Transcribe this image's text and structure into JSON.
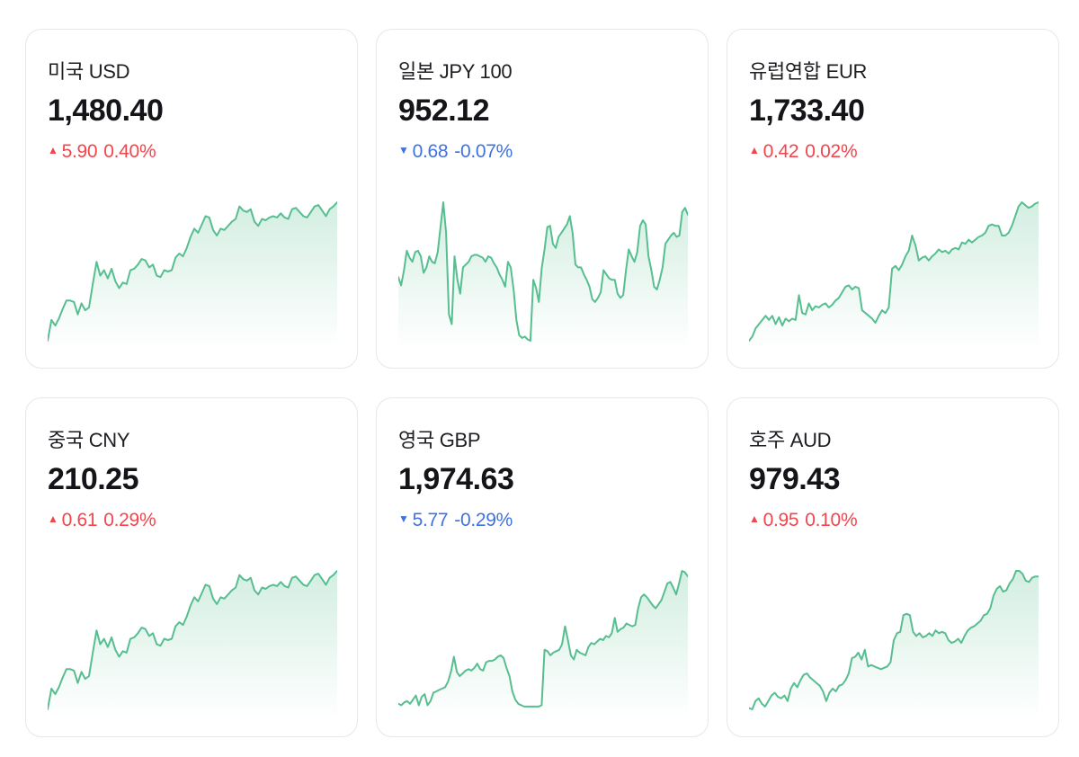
{
  "colors": {
    "up": "#f4444c",
    "down": "#3f72e0",
    "line": "#57be90",
    "card_border": "#e7e7ea",
    "title_text": "#1e1e23",
    "value_text": "#141419"
  },
  "cards": [
    {
      "title": "미국 USD",
      "value": "1,480.40",
      "direction": "up",
      "arrow": "▲",
      "change_amount": "5.90",
      "change_percent": "0.40%"
    },
    {
      "title": "일본 JPY 100",
      "value": "952.12",
      "direction": "down",
      "arrow": "▼",
      "change_amount": "0.68",
      "change_percent": "-0.07%"
    },
    {
      "title": "유럽연합 EUR",
      "value": "1,733.40",
      "direction": "up",
      "arrow": "▲",
      "change_amount": "0.42",
      "change_percent": "0.02%"
    },
    {
      "title": "중국 CNY",
      "value": "210.25",
      "direction": "up",
      "arrow": "▲",
      "change_amount": "0.61",
      "change_percent": "0.29%"
    },
    {
      "title": "영국 GBP",
      "value": "1,974.63",
      "direction": "down",
      "arrow": "▼",
      "change_amount": "5.77",
      "change_percent": "-0.29%"
    },
    {
      "title": "호주 AUD",
      "value": "979.43",
      "direction": "up",
      "arrow": "▲",
      "change_amount": "0.95",
      "change_percent": "0.10%"
    }
  ],
  "chart_data": [
    {
      "type": "line",
      "name": "미국 USD sparkline",
      "ylim": [
        0,
        100
      ],
      "grid": false,
      "legend": false,
      "values": [
        0,
        15,
        11,
        16,
        23,
        29,
        29,
        28,
        19,
        27,
        22,
        24,
        41,
        57,
        47,
        51,
        45,
        52,
        43,
        38,
        42,
        41,
        51,
        52,
        55,
        59,
        58,
        53,
        55,
        47,
        46,
        51,
        50,
        51,
        60,
        63,
        61,
        67,
        75,
        81,
        78,
        84,
        90,
        89,
        80,
        76,
        81,
        80,
        83,
        86,
        88,
        97,
        94,
        93,
        95,
        86,
        83,
        88,
        87,
        89,
        90,
        89,
        92,
        89,
        88,
        95,
        96,
        93,
        90,
        89,
        93,
        97,
        98,
        94,
        90,
        95,
        97,
        100
      ]
    },
    {
      "type": "line",
      "name": "일본 JPY 100 sparkline",
      "ylim": [
        0,
        100
      ],
      "grid": false,
      "legend": false,
      "values": [
        46,
        40,
        51,
        65,
        60,
        57,
        64,
        65,
        61,
        49,
        53,
        61,
        57,
        56,
        64,
        82,
        100,
        78,
        19,
        12,
        61,
        44,
        34,
        53,
        55,
        57,
        61,
        62,
        62,
        61,
        60,
        57,
        61,
        60,
        56,
        53,
        48,
        44,
        39,
        57,
        53,
        37,
        15,
        4,
        2,
        3,
        1,
        0,
        44,
        38,
        28,
        52,
        66,
        82,
        83,
        70,
        67,
        75,
        78,
        81,
        84,
        90,
        78,
        55,
        53,
        53,
        48,
        44,
        39,
        30,
        28,
        31,
        35,
        51,
        48,
        45,
        44,
        44,
        34,
        31,
        33,
        51,
        66,
        61,
        57,
        64,
        83,
        87,
        84,
        61,
        51,
        39,
        37,
        44,
        53,
        70,
        73,
        76,
        78,
        75,
        76,
        93,
        96,
        91
      ]
    },
    {
      "type": "line",
      "name": "유럽연합 EUR sparkline",
      "ylim": [
        0,
        100
      ],
      "grid": false,
      "legend": false,
      "values": [
        0,
        3,
        9,
        12,
        15,
        18,
        15,
        18,
        12,
        17,
        11,
        16,
        14,
        16,
        15,
        33,
        20,
        19,
        27,
        22,
        25,
        24,
        26,
        27,
        24,
        26,
        29,
        31,
        35,
        39,
        40,
        37,
        39,
        38,
        22,
        20,
        18,
        16,
        13,
        18,
        22,
        20,
        24,
        52,
        54,
        51,
        55,
        61,
        65,
        76,
        69,
        58,
        60,
        61,
        58,
        61,
        63,
        66,
        64,
        65,
        63,
        66,
        67,
        66,
        71,
        70,
        73,
        71,
        73,
        75,
        76,
        78,
        83,
        84,
        83,
        83,
        76,
        76,
        78,
        83,
        90,
        97,
        100,
        98,
        96,
        97,
        99,
        100
      ]
    },
    {
      "type": "line",
      "name": "중국 CNY sparkline",
      "ylim": [
        0,
        100
      ],
      "grid": false,
      "legend": false,
      "values": [
        0,
        15,
        11,
        16,
        23,
        29,
        29,
        28,
        19,
        27,
        22,
        24,
        41,
        57,
        47,
        51,
        45,
        52,
        43,
        38,
        42,
        41,
        51,
        52,
        55,
        59,
        58,
        53,
        55,
        47,
        46,
        51,
        50,
        51,
        60,
        63,
        61,
        67,
        75,
        81,
        78,
        84,
        90,
        89,
        80,
        76,
        81,
        80,
        83,
        86,
        88,
        97,
        94,
        93,
        95,
        86,
        83,
        88,
        87,
        89,
        90,
        89,
        92,
        89,
        88,
        95,
        96,
        93,
        90,
        89,
        93,
        97,
        98,
        94,
        90,
        95,
        97,
        100
      ]
    },
    {
      "type": "line",
      "name": "영국 GBP sparkline",
      "ylim": [
        0,
        100
      ],
      "grid": false,
      "legend": false,
      "values": [
        4,
        3,
        5,
        6,
        4,
        7,
        10,
        3,
        9,
        11,
        3,
        6,
        12,
        13,
        14,
        15,
        16,
        20,
        27,
        38,
        27,
        24,
        26,
        28,
        29,
        28,
        30,
        33,
        29,
        28,
        34,
        35,
        35,
        36,
        38,
        39,
        37,
        30,
        24,
        13,
        7,
        4,
        3,
        2,
        2,
        2,
        2,
        2,
        2,
        3,
        43,
        42,
        39,
        41,
        42,
        43,
        47,
        60,
        50,
        39,
        36,
        43,
        41,
        40,
        39,
        45,
        48,
        47,
        49,
        51,
        50,
        53,
        52,
        55,
        66,
        56,
        58,
        59,
        62,
        61,
        60,
        61,
        73,
        81,
        83,
        81,
        78,
        75,
        73,
        76,
        79,
        85,
        91,
        92,
        88,
        83,
        91,
        100,
        99,
        96
      ]
    },
    {
      "type": "line",
      "name": "호주 AUD sparkline",
      "ylim": [
        0,
        100
      ],
      "grid": false,
      "legend": false,
      "values": [
        1,
        0,
        6,
        8,
        4,
        2,
        6,
        10,
        12,
        9,
        8,
        10,
        6,
        15,
        19,
        16,
        21,
        25,
        26,
        23,
        21,
        19,
        17,
        13,
        6,
        12,
        15,
        13,
        17,
        18,
        21,
        26,
        37,
        38,
        41,
        36,
        43,
        31,
        32,
        31,
        30,
        29,
        30,
        31,
        34,
        50,
        55,
        56,
        68,
        69,
        68,
        56,
        53,
        55,
        52,
        53,
        55,
        53,
        57,
        55,
        56,
        55,
        50,
        48,
        49,
        51,
        48,
        53,
        57,
        59,
        60,
        62,
        64,
        68,
        69,
        73,
        82,
        87,
        89,
        85,
        86,
        91,
        94,
        100,
        100,
        98,
        93,
        92,
        95,
        96,
        96
      ]
    }
  ]
}
